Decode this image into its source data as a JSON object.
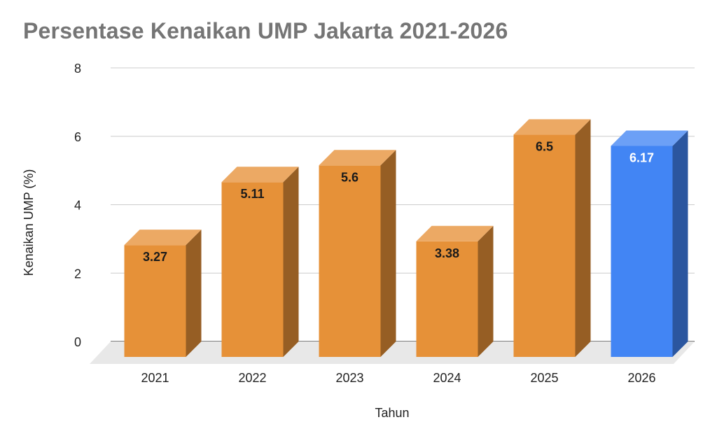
{
  "chart_data": {
    "type": "bar",
    "title": "Persentase Kenaikan UMP Jakarta 2021-2026",
    "xlabel": "Tahun",
    "ylabel": "Kenaikan UMP (%)",
    "categories": [
      "2021",
      "2022",
      "2023",
      "2024",
      "2025",
      "2026"
    ],
    "values": [
      3.27,
      5.11,
      5.6,
      3.38,
      6.5,
      6.17
    ],
    "value_labels": [
      "3.27",
      "5.11",
      "5.6",
      "3.38",
      "6.5",
      "6.17"
    ],
    "ylim": [
      0,
      8
    ],
    "yticks": [
      "0",
      "2",
      "4",
      "6",
      "8"
    ],
    "grid": true,
    "style": "3d-column",
    "colors": {
      "default_bar": "#E69138",
      "highlight_bar": "#4285F4",
      "default_label": "#1a1a1a",
      "highlight_label": "#ffffff",
      "title": "#757575",
      "gridline": "#cccccc"
    },
    "highlight_index": 5
  }
}
